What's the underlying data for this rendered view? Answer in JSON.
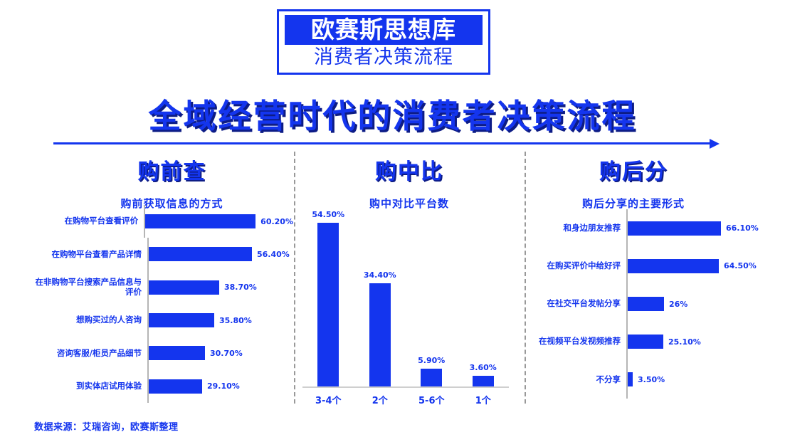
{
  "badge": {
    "title": "欧赛斯思想库",
    "subtitle": "消费者决策流程"
  },
  "main_title": "全域经营时代的消费者决策流程",
  "section_headers": [
    "购前查",
    "购中比",
    "购后分"
  ],
  "footer": {
    "source": "数据来源：艾瑞咨询，欧赛斯整理"
  },
  "colors": {
    "accent": "#1435ee",
    "title_shadow": "#0d1c85",
    "divider": "#999999",
    "axis_line": "#b5b5b5",
    "baseline": "#cfcfcf",
    "badge_text_on_blue": "#ffffff",
    "background": "#ffffff"
  },
  "chart_data": [
    {
      "type": "bar",
      "orientation": "horizontal",
      "title": "购前获取信息的方式",
      "categories": [
        "在购物平台查看评价",
        "在购物平台查看产品详情",
        "在非购物平台搜索产品信息与评价",
        "想购买过的人咨询",
        "咨询客服/柜员产品细节",
        "到实体店试用体验"
      ],
      "values": [
        60.2,
        56.4,
        38.7,
        35.8,
        30.7,
        29.1
      ],
      "labels": [
        "60.20%",
        "56.40%",
        "38.70%",
        "35.80%",
        "30.70%",
        "29.10%"
      ],
      "xlim": [
        0,
        65
      ],
      "grid": false,
      "legend": false
    },
    {
      "type": "bar",
      "orientation": "vertical",
      "title": "购中对比平台数",
      "categories": [
        "3-4个",
        "2个",
        "5-6个",
        "1个"
      ],
      "values": [
        54.5,
        34.4,
        5.9,
        3.6
      ],
      "labels": [
        "54.50%",
        "34.40%",
        "5.90%",
        "3.60%"
      ],
      "ylim": [
        0,
        60
      ],
      "grid": false,
      "legend": false
    },
    {
      "type": "bar",
      "orientation": "horizontal",
      "title": "购后分享的主要形式",
      "categories": [
        "和身边朋友推荐",
        "在购买评价中给好评",
        "在社交平台发帖分享",
        "在视频平台发视频推荐",
        "不分享"
      ],
      "values": [
        66.1,
        64.5,
        26,
        25.1,
        3.5
      ],
      "labels": [
        "66.10%",
        "64.50%",
        "26%",
        "25.10%",
        "3.50%"
      ],
      "xlim": [
        0,
        70
      ],
      "grid": false,
      "legend": false
    }
  ]
}
